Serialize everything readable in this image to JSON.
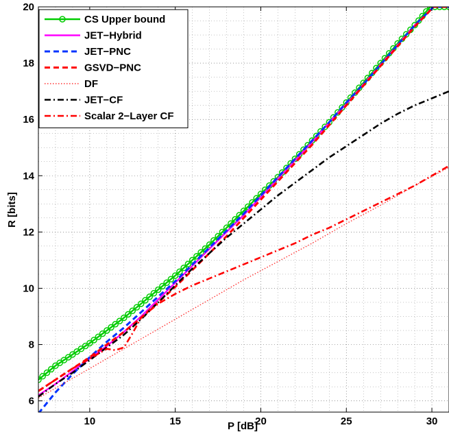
{
  "chart_data": {
    "type": "line",
    "title": "",
    "xlabel": "P [dB]",
    "ylabel": "R [bits]",
    "xlim": [
      7,
      31
    ],
    "ylim": [
      5.6,
      20
    ],
    "xticks": [
      10,
      15,
      20,
      25,
      30
    ],
    "yticks": [
      6,
      8,
      10,
      12,
      14,
      16,
      18,
      20
    ],
    "grid": "on",
    "legend_position": "top-left",
    "series": [
      {
        "name": "CS Upper bound",
        "color": "#00cc00",
        "style": "solid-circles",
        "x": [
          7,
          8,
          9,
          10,
          11,
          12,
          13,
          14,
          15,
          16,
          17,
          18,
          19,
          20,
          21,
          22,
          23,
          24,
          25,
          26,
          27,
          28,
          29,
          29.9,
          31
        ],
        "y": [
          6.75,
          7.25,
          7.65,
          8.05,
          8.5,
          8.95,
          9.45,
          9.95,
          10.45,
          11.0,
          11.55,
          12.15,
          12.75,
          13.35,
          13.95,
          14.6,
          15.25,
          15.9,
          16.6,
          17.3,
          18.0,
          18.7,
          19.35,
          20.0,
          20.0
        ]
      },
      {
        "name": "JET−Hybrid",
        "color": "#ff00ff",
        "style": "solid",
        "x": [
          7,
          8,
          9,
          10,
          11,
          12,
          13,
          14,
          15,
          16,
          17,
          18,
          19,
          20,
          21,
          22,
          23,
          24,
          25,
          26,
          27,
          28,
          29,
          30.1,
          31
        ],
        "y": [
          6.2,
          6.6,
          7.05,
          7.5,
          7.95,
          8.45,
          9.0,
          9.6,
          10.2,
          10.8,
          11.4,
          12.0,
          12.6,
          13.25,
          13.9,
          14.55,
          15.2,
          15.9,
          16.55,
          17.25,
          17.95,
          18.65,
          19.35,
          20.0,
          20.0
        ]
      },
      {
        "name": "JET−PNC",
        "color": "#0033ff",
        "style": "dashed",
        "x": [
          7,
          8,
          9,
          10,
          11,
          12,
          13,
          14,
          15,
          16,
          17,
          18,
          19,
          20,
          21,
          22,
          23,
          24,
          25,
          26,
          27,
          28,
          29,
          30.1,
          31
        ],
        "y": [
          5.55,
          6.3,
          6.95,
          7.55,
          8.1,
          8.6,
          9.15,
          9.7,
          10.25,
          10.85,
          11.45,
          12.05,
          12.65,
          13.3,
          13.95,
          14.6,
          15.25,
          15.9,
          16.6,
          17.25,
          17.95,
          18.65,
          19.35,
          20.0,
          20.0
        ]
      },
      {
        "name": "GSVD−PNC",
        "color": "#ff0000",
        "style": "dashed",
        "x": [
          7,
          8,
          9,
          10,
          11,
          12,
          13,
          14,
          15,
          16,
          17,
          18,
          19,
          20,
          21,
          22,
          23,
          24,
          25,
          26,
          27,
          28,
          29,
          30.1,
          31
        ],
        "y": [
          6.35,
          6.75,
          7.15,
          7.55,
          8.0,
          8.45,
          8.95,
          9.5,
          10.05,
          10.65,
          11.25,
          11.85,
          12.5,
          13.15,
          13.8,
          14.45,
          15.1,
          15.8,
          16.5,
          17.2,
          17.9,
          18.6,
          19.3,
          20.0,
          20.0
        ]
      },
      {
        "name": "DF",
        "color": "#ff3333",
        "style": "dotted",
        "x": [
          7,
          9,
          11,
          13,
          15,
          17,
          19,
          21,
          23,
          25,
          27,
          29,
          31
        ],
        "y": [
          6.1,
          6.8,
          7.5,
          8.2,
          8.9,
          9.6,
          10.3,
          10.95,
          11.6,
          12.3,
          12.95,
          13.65,
          14.3
        ]
      },
      {
        "name": "JET−CF",
        "color": "#000000",
        "style": "dashdot",
        "x": [
          7,
          8,
          9,
          10,
          11,
          12,
          13,
          14,
          15,
          16,
          17,
          18,
          19,
          20,
          21,
          22,
          23,
          24,
          25,
          26,
          27,
          28,
          29,
          30,
          31
        ],
        "y": [
          6.15,
          6.6,
          7.0,
          7.45,
          7.9,
          8.35,
          8.9,
          9.5,
          10.1,
          10.7,
          11.25,
          11.8,
          12.3,
          12.8,
          13.3,
          13.75,
          14.2,
          14.65,
          15.05,
          15.45,
          15.85,
          16.2,
          16.5,
          16.75,
          17.0
        ]
      },
      {
        "name": "Scalar 2−Layer CF",
        "color": "#ff0000",
        "style": "dashdot",
        "x": [
          7,
          8,
          9,
          10,
          11,
          11.5,
          12,
          12.5,
          13,
          14,
          15,
          16,
          17,
          18,
          19,
          20,
          21,
          22,
          23,
          24,
          25,
          26,
          27,
          28,
          29,
          30,
          31
        ],
        "y": [
          6.35,
          6.75,
          7.15,
          7.5,
          7.85,
          7.8,
          7.9,
          8.4,
          8.95,
          9.45,
          9.8,
          10.1,
          10.35,
          10.6,
          10.85,
          11.1,
          11.35,
          11.6,
          11.9,
          12.15,
          12.45,
          12.75,
          13.05,
          13.35,
          13.65,
          14.0,
          14.35
        ]
      }
    ]
  }
}
